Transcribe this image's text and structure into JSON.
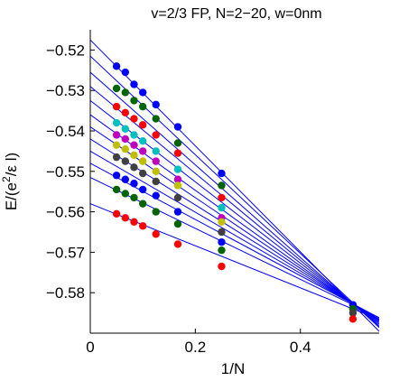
{
  "chart_data": {
    "type": "scatter",
    "title": "v=2/3 FP, N=2−20, w=0nm",
    "xlabel": "1/N",
    "ylabel_main": "E/(e",
    "ylabel_sup": "2",
    "ylabel_rest": "/ε l)",
    "xlim": [
      0,
      0.55
    ],
    "ylim": [
      -0.59,
      -0.515
    ],
    "xticks": [
      {
        "value": 0,
        "label": "0"
      },
      {
        "value": 0.2,
        "label": "0.2"
      },
      {
        "value": 0.4,
        "label": "0.4"
      }
    ],
    "yticks": [
      {
        "value": -0.52,
        "label": "−0.52"
      },
      {
        "value": -0.53,
        "label": "−0.53"
      },
      {
        "value": -0.54,
        "label": "−0.54"
      },
      {
        "value": -0.55,
        "label": "−0.55"
      },
      {
        "value": -0.56,
        "label": "−0.56"
      },
      {
        "value": -0.57,
        "label": "−0.57"
      },
      {
        "value": -0.58,
        "label": "−0.58"
      }
    ],
    "grid": false,
    "legend": "none",
    "fit_line_color": "#0000ff",
    "fit_lines": [
      {
        "intercept": -0.5175,
        "slope": -0.131
      },
      {
        "intercept": -0.5215,
        "slope": -0.122
      },
      {
        "intercept": -0.5255,
        "slope": -0.1145
      },
      {
        "intercept": -0.529,
        "slope": -0.1075
      },
      {
        "intercept": -0.5325,
        "slope": -0.1005
      },
      {
        "intercept": -0.536,
        "slope": -0.0935
      },
      {
        "intercept": -0.539,
        "slope": -0.0875
      },
      {
        "intercept": -0.542,
        "slope": -0.0815
      },
      {
        "intercept": -0.545,
        "slope": -0.0755
      },
      {
        "intercept": -0.548,
        "slope": -0.0695
      },
      {
        "intercept": -0.5515,
        "slope": -0.063
      },
      {
        "intercept": -0.558,
        "slope": -0.052
      }
    ],
    "series": [
      {
        "color": "#0000ff",
        "x": [
          0.05,
          0.0667,
          0.0833,
          0.1,
          0.125,
          0.1667,
          0.25
        ],
        "y": [
          -0.524,
          -0.5255,
          -0.5285,
          -0.5305,
          -0.5335,
          -0.539,
          -0.5505
        ]
      },
      {
        "color": "#006400",
        "x": [
          0.05,
          0.0667,
          0.0833,
          0.1,
          0.125,
          0.1667,
          0.25
        ],
        "y": [
          -0.5295,
          -0.5305,
          -0.5325,
          -0.534,
          -0.537,
          -0.543,
          -0.5535
        ]
      },
      {
        "color": "#ff0000",
        "x": [
          0.05,
          0.0667,
          0.0833,
          0.1,
          0.125,
          0.1667,
          0.25
        ],
        "y": [
          -0.534,
          -0.5355,
          -0.537,
          -0.5385,
          -0.541,
          -0.5455,
          -0.5565
        ]
      },
      {
        "color": "#00bfbf",
        "x": [
          0.05,
          0.0667,
          0.0833,
          0.1,
          0.125,
          0.1667,
          0.25
        ],
        "y": [
          -0.538,
          -0.5395,
          -0.541,
          -0.5425,
          -0.545,
          -0.5495,
          -0.559
        ]
      },
      {
        "color": "#bf00bf",
        "x": [
          0.05,
          0.0667,
          0.0833,
          0.1,
          0.125,
          0.1667,
          0.25
        ],
        "y": [
          -0.541,
          -0.542,
          -0.5435,
          -0.545,
          -0.5475,
          -0.552,
          -0.5615
        ]
      },
      {
        "color": "#bfbf00",
        "x": [
          0.05,
          0.0667,
          0.0833,
          0.1,
          0.125,
          0.1667,
          0.25
        ],
        "y": [
          -0.5435,
          -0.5445,
          -0.546,
          -0.5475,
          -0.55,
          -0.5535,
          -0.5625
        ]
      },
      {
        "color": "#404040",
        "x": [
          0.05,
          0.0667,
          0.0833,
          0.1,
          0.125,
          0.1667,
          0.25
        ],
        "y": [
          -0.5465,
          -0.5475,
          -0.549,
          -0.5505,
          -0.5525,
          -0.5565,
          -0.565
        ]
      },
      {
        "color": "#0000ff",
        "x": [
          0.05,
          0.0667,
          0.0833,
          0.1,
          0.125,
          0.1667,
          0.25
        ],
        "y": [
          -0.551,
          -0.552,
          -0.553,
          -0.5545,
          -0.556,
          -0.56,
          -0.5675
        ]
      },
      {
        "color": "#006400",
        "x": [
          0.05,
          0.0667,
          0.0833,
          0.1,
          0.125,
          0.1667,
          0.25
        ],
        "y": [
          -0.5545,
          -0.5555,
          -0.5565,
          -0.558,
          -0.56,
          -0.563,
          -0.5695
        ]
      },
      {
        "color": "#ff0000",
        "x": [
          0.05,
          0.0667,
          0.0833,
          0.1,
          0.125,
          0.1667,
          0.25
        ],
        "y": [
          -0.5605,
          -0.5615,
          -0.5625,
          -0.5635,
          -0.5655,
          -0.568,
          -0.5735
        ]
      },
      {
        "color": "#0000ff",
        "x": [
          0.5
        ],
        "y": [
          -0.583
        ]
      },
      {
        "color": "#006400",
        "x": [
          0.5
        ],
        "y": [
          -0.584
        ]
      },
      {
        "color": "#404040",
        "x": [
          0.5
        ],
        "y": [
          -0.585
        ]
      },
      {
        "color": "#ff0000",
        "x": [
          0.5
        ],
        "y": [
          -0.5865
        ]
      }
    ]
  }
}
